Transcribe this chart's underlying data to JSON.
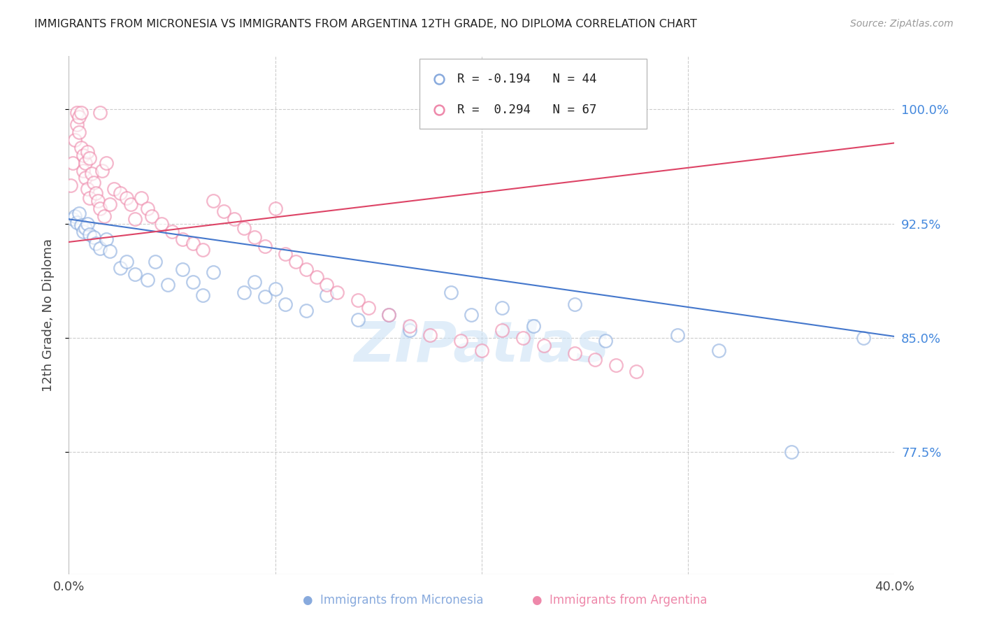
{
  "title": "IMMIGRANTS FROM MICRONESIA VS IMMIGRANTS FROM ARGENTINA 12TH GRADE, NO DIPLOMA CORRELATION CHART",
  "source": "Source: ZipAtlas.com",
  "xlim": [
    0.0,
    0.4
  ],
  "ylim": [
    0.695,
    1.035
  ],
  "ytick_values": [
    0.775,
    0.85,
    0.925,
    1.0
  ],
  "ytick_labels": [
    "77.5%",
    "85.0%",
    "92.5%",
    "100.0%"
  ],
  "blue_color": "#88aadd",
  "pink_color": "#ee88aa",
  "blue_R": -0.194,
  "blue_N": 44,
  "pink_R": 0.294,
  "pink_N": 67,
  "legend_blue": "R = -0.194   N = 44",
  "legend_pink": "R =  0.294   N = 67",
  "ylabel": "12th Grade, No Diploma",
  "watermark": "ZIPatlas",
  "bottom_legend_blue": "Immigrants from Micronesia",
  "bottom_legend_pink": "Immigrants from Argentina",
  "blue_trend_x": [
    0.0,
    0.4
  ],
  "blue_trend_y": [
    0.928,
    0.851
  ],
  "pink_trend_x": [
    0.0,
    0.4
  ],
  "pink_trend_y": [
    0.913,
    0.978
  ],
  "blue_x": [
    0.002,
    0.003,
    0.004,
    0.005,
    0.006,
    0.007,
    0.008,
    0.009,
    0.01,
    0.012,
    0.013,
    0.015,
    0.018,
    0.02,
    0.025,
    0.028,
    0.032,
    0.038,
    0.042,
    0.048,
    0.055,
    0.06,
    0.065,
    0.07,
    0.085,
    0.09,
    0.095,
    0.1,
    0.105,
    0.115,
    0.125,
    0.14,
    0.155,
    0.165,
    0.185,
    0.195,
    0.21,
    0.225,
    0.245,
    0.26,
    0.295,
    0.315,
    0.35,
    0.385
  ],
  "blue_y": [
    0.928,
    0.93,
    0.926,
    0.932,
    0.924,
    0.92,
    0.922,
    0.925,
    0.918,
    0.916,
    0.912,
    0.909,
    0.915,
    0.907,
    0.896,
    0.9,
    0.892,
    0.888,
    0.9,
    0.885,
    0.895,
    0.887,
    0.878,
    0.893,
    0.88,
    0.887,
    0.877,
    0.882,
    0.872,
    0.868,
    0.878,
    0.862,
    0.865,
    0.855,
    0.88,
    0.865,
    0.87,
    0.858,
    0.872,
    0.848,
    0.852,
    0.842,
    0.775,
    0.85
  ],
  "pink_x": [
    0.001,
    0.002,
    0.003,
    0.004,
    0.004,
    0.005,
    0.005,
    0.006,
    0.006,
    0.007,
    0.007,
    0.008,
    0.008,
    0.009,
    0.009,
    0.01,
    0.01,
    0.011,
    0.012,
    0.013,
    0.014,
    0.015,
    0.015,
    0.016,
    0.017,
    0.018,
    0.02,
    0.022,
    0.025,
    0.028,
    0.03,
    0.032,
    0.035,
    0.038,
    0.04,
    0.045,
    0.05,
    0.055,
    0.06,
    0.065,
    0.07,
    0.075,
    0.08,
    0.085,
    0.09,
    0.095,
    0.1,
    0.105,
    0.11,
    0.115,
    0.12,
    0.125,
    0.13,
    0.14,
    0.145,
    0.155,
    0.165,
    0.175,
    0.19,
    0.2,
    0.21,
    0.22,
    0.23,
    0.245,
    0.255,
    0.265,
    0.275
  ],
  "pink_y": [
    0.95,
    0.965,
    0.98,
    0.99,
    0.998,
    0.985,
    0.995,
    0.975,
    0.998,
    0.97,
    0.96,
    0.965,
    0.955,
    0.972,
    0.948,
    0.968,
    0.942,
    0.958,
    0.952,
    0.945,
    0.94,
    0.998,
    0.935,
    0.96,
    0.93,
    0.965,
    0.938,
    0.948,
    0.945,
    0.942,
    0.938,
    0.928,
    0.942,
    0.935,
    0.93,
    0.925,
    0.92,
    0.915,
    0.912,
    0.908,
    0.94,
    0.933,
    0.928,
    0.922,
    0.916,
    0.91,
    0.935,
    0.905,
    0.9,
    0.895,
    0.89,
    0.885,
    0.88,
    0.875,
    0.87,
    0.865,
    0.858,
    0.852,
    0.848,
    0.842,
    0.855,
    0.85,
    0.845,
    0.84,
    0.836,
    0.832,
    0.828
  ]
}
